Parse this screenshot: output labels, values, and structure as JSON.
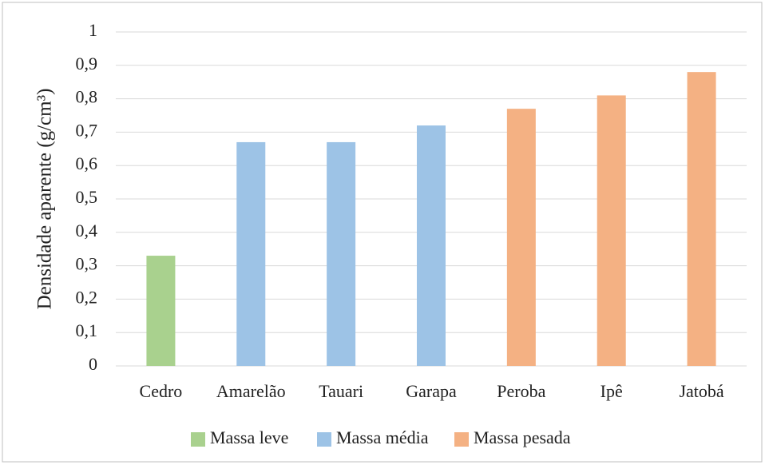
{
  "chart_data": {
    "type": "bar",
    "y_label": "Densidade aparente (g/cm³)",
    "categories": [
      "Cedro",
      "Amarelão",
      "Tauari",
      "Garapa",
      "Peroba",
      "Ipê",
      "Jatobá"
    ],
    "series": [
      {
        "name": "Massa leve",
        "color": "#a9d18e",
        "values": [
          0.33,
          null,
          null,
          null,
          null,
          null,
          null
        ]
      },
      {
        "name": "Massa média",
        "color": "#9dc3e6",
        "values": [
          null,
          0.67,
          0.67,
          0.72,
          null,
          null,
          null
        ]
      },
      {
        "name": "Massa pesada",
        "color": "#f4b183",
        "values": [
          null,
          null,
          null,
          null,
          0.77,
          0.81,
          0.88
        ]
      }
    ],
    "ylim": [
      0,
      1
    ],
    "yticks": [
      0,
      {
        "value": 0.1,
        "label": "0,1"
      },
      {
        "value": 0.2,
        "label": "0,2"
      },
      {
        "value": 0.3,
        "label": "0,3"
      },
      {
        "value": 0.4,
        "label": "0,4"
      },
      {
        "value": 0.5,
        "label": "0,5"
      },
      {
        "value": 0.6,
        "label": "0,6"
      },
      {
        "value": 0.7,
        "label": "0,7"
      },
      {
        "value": 0.8,
        "label": "0,8"
      },
      {
        "value": 0.9,
        "label": "0,9"
      },
      1
    ],
    "grid": true,
    "legend": "bottom"
  }
}
